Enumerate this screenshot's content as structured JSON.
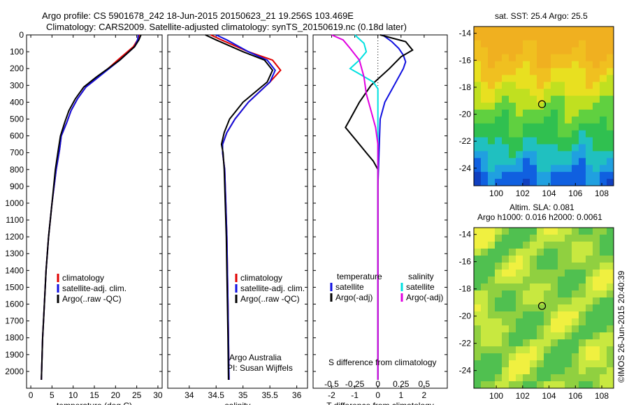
{
  "header": {
    "line1": "Argo profile: CS 5901678_242 18-Jun-2015 20150623_21 19.256S 103.469E",
    "line2": "Climatology: CARS2009. Satellite-adjusted climatology: synTS_20150619.nc (0.18d later)"
  },
  "colors": {
    "climatology": "#e00000",
    "satellite": "#1010e0",
    "argo": "#000000",
    "sat_salinity": "#00e0e0",
    "argo_salinity": "#e000e0"
  },
  "chart_data": [
    {
      "type": "line",
      "name": "temperature-profile",
      "xlabel": "temperature (deg C)",
      "xlim": [
        -1,
        31
      ],
      "ylim": [
        2100,
        0
      ],
      "xticks": [
        "0",
        "5",
        "10",
        "15",
        "20",
        "25",
        "30"
      ],
      "yticks": [
        "0",
        "100",
        "200",
        "300",
        "400",
        "500",
        "600",
        "700",
        "800",
        "900",
        "1000",
        "1100",
        "1200",
        "1300",
        "1400",
        "1500",
        "1600",
        "1700",
        "1800",
        "1900",
        "2000"
      ],
      "legend": [
        "climatology",
        "satellite-adj. clim.",
        "Argo(..raw -QC)"
      ],
      "series": [
        {
          "name": "climatology",
          "color": "#e00000",
          "x": [
            25.6,
            25.2,
            24.2,
            20.5,
            16,
            13,
            11,
            9.5,
            8.5,
            7.2,
            6.8,
            6,
            5,
            4.2,
            3.6,
            3.2,
            2.8,
            2.5
          ],
          "y": [
            0,
            30,
            70,
            150,
            250,
            310,
            380,
            450,
            520,
            600,
            680,
            800,
            1000,
            1200,
            1400,
            1600,
            1800,
            2050
          ]
        },
        {
          "name": "satellite-adj. clim.",
          "color": "#1010e0",
          "x": [
            25.4,
            25.2,
            24.5,
            21,
            16,
            13,
            11,
            9.5,
            8.5,
            7.2,
            6.8,
            6,
            5,
            4.2,
            3.6,
            3.2,
            2.8,
            2.5
          ],
          "y": [
            0,
            30,
            70,
            150,
            250,
            310,
            380,
            450,
            520,
            600,
            680,
            800,
            1000,
            1200,
            1400,
            1600,
            1800,
            2050
          ]
        },
        {
          "name": "Argo(..raw -QC)",
          "color": "#000000",
          "x": [
            26,
            25.5,
            24.5,
            21,
            15.5,
            12.5,
            10.5,
            9,
            8,
            7,
            6.5,
            5.8,
            5,
            4.2,
            3.6,
            3.2,
            2.8,
            2.5
          ],
          "y": [
            0,
            30,
            70,
            150,
            250,
            310,
            380,
            450,
            520,
            600,
            680,
            800,
            1000,
            1200,
            1400,
            1600,
            1800,
            2050
          ]
        }
      ]
    },
    {
      "type": "line",
      "name": "salinity-profile",
      "xlabel": "salinity",
      "xlim": [
        33.6,
        36.2
      ],
      "ylim": [
        2100,
        0
      ],
      "xticks": [
        "34",
        "34.5",
        "35",
        "35.5",
        "36"
      ],
      "legend": [
        "climatology",
        "satellite-adj. clim.",
        "Argo(..raw -QC)"
      ],
      "annotation": [
        "Argo Australia",
        "PI: Susan Wijffels"
      ],
      "series": [
        {
          "name": "climatology",
          "color": "#e00000",
          "x": [
            34.4,
            34.6,
            35.1,
            35.55,
            35.7,
            35.5,
            35.1,
            34.85,
            34.7,
            34.62,
            34.62,
            34.66,
            34.68,
            34.7,
            34.71,
            34.72,
            34.73,
            34.74
          ],
          "y": [
            0,
            30,
            100,
            150,
            210,
            280,
            400,
            500,
            580,
            650,
            700,
            800,
            1000,
            1200,
            1400,
            1600,
            1800,
            2050
          ]
        },
        {
          "name": "satellite-adj. clim.",
          "color": "#1010e0",
          "x": [
            34.5,
            34.7,
            35.1,
            35.45,
            35.6,
            35.5,
            35.1,
            34.85,
            34.7,
            34.62,
            34.62,
            34.66,
            34.68,
            34.7,
            34.71,
            34.72,
            34.73,
            34.74
          ],
          "y": [
            0,
            30,
            100,
            150,
            210,
            280,
            400,
            500,
            580,
            650,
            700,
            800,
            1000,
            1200,
            1400,
            1600,
            1800,
            2050
          ]
        },
        {
          "name": "Argo(..raw -QC)",
          "color": "#000000",
          "x": [
            34.3,
            34.5,
            35.0,
            35.4,
            35.55,
            35.45,
            35.0,
            34.75,
            34.65,
            34.6,
            34.63,
            34.65,
            34.67,
            34.69,
            34.7,
            34.71,
            34.72,
            34.73
          ],
          "y": [
            0,
            30,
            100,
            150,
            210,
            280,
            400,
            500,
            580,
            650,
            700,
            800,
            1000,
            1200,
            1400,
            1600,
            1800,
            2050
          ]
        }
      ]
    },
    {
      "type": "line",
      "name": "difference-profile",
      "xlabel": "T difference from climatology",
      "xlabel_top": "S difference from climatology",
      "xlim": [
        -2.8,
        3.0
      ],
      "ylim": [
        2100,
        0
      ],
      "xticks": [
        "-2",
        "-1",
        "0",
        "1",
        "2"
      ],
      "s_ticks": [
        "-0.5",
        "-0.25",
        "0",
        "0.25",
        "0.5"
      ],
      "legend_t_title": "temperature",
      "legend_s_title": "salinity",
      "legend_t": [
        "satellite",
        "Argo(-adj)"
      ],
      "legend_s": [
        "satellite",
        "Argo(-adj)"
      ],
      "series": [
        {
          "name": "T satellite",
          "color": "#1010e0",
          "x": [
            0.2,
            0.6,
            0.9,
            1.1,
            1.2,
            1.1,
            0.7,
            0.3,
            0.1,
            0.05,
            0.0,
            0.0,
            0.0
          ],
          "y": [
            0,
            40,
            80,
            120,
            160,
            200,
            300,
            400,
            500,
            700,
            900,
            1200,
            2050
          ]
        },
        {
          "name": "T Argo(-adj)",
          "color": "#000000",
          "x": [
            0.1,
            1.2,
            1.5,
            1.0,
            0.5,
            -0.3,
            -0.8,
            -1.2,
            -1.4,
            -1.1,
            -0.8,
            -0.5,
            -0.2,
            0.0,
            0.0
          ],
          "y": [
            0,
            40,
            90,
            130,
            200,
            300,
            400,
            500,
            550,
            600,
            650,
            700,
            750,
            800,
            2050
          ]
        },
        {
          "name": "S satellite",
          "color": "#00e0e0",
          "x": [
            -1.0,
            -0.6,
            -0.5,
            -0.8,
            -1.2,
            -0.7,
            -0.2,
            0.0,
            0.0,
            0.0,
            0.0
          ],
          "y": [
            0,
            50,
            100,
            150,
            200,
            240,
            280,
            320,
            500,
            1000,
            2050
          ]
        },
        {
          "name": "S Argo(-adj)",
          "color": "#e000e0",
          "x": [
            -2.0,
            -1.5,
            -1.2,
            -0.8,
            -0.6,
            -0.5,
            -0.3,
            -0.1,
            0.0,
            0.0,
            0.0
          ],
          "y": [
            0,
            30,
            80,
            150,
            250,
            350,
            450,
            550,
            650,
            800,
            2050
          ]
        }
      ]
    }
  ],
  "maps": [
    {
      "name": "sst-map",
      "title": "sat. SST: 25.4 Argo: 25.5",
      "xticks": [
        "100",
        "102",
        "104",
        "106",
        "108"
      ],
      "yticks": [
        "-14",
        "-16",
        "-18",
        "-20",
        "-22",
        "-24"
      ],
      "xlim": [
        98.3,
        108.9
      ],
      "ylim": [
        -25.3,
        -13.5
      ],
      "argo_lon": 103.469,
      "argo_lat": -19.256
    },
    {
      "name": "sla-map",
      "title_line1": "Altim. SLA: 0.081",
      "title_line2": "Argo h1000: 0.016 h2000: 0.0061",
      "xticks": [
        "100",
        "102",
        "104",
        "106",
        "108"
      ],
      "yticks": [
        "-14",
        "-16",
        "-18",
        "-20",
        "-22",
        "-24"
      ],
      "xlim": [
        98.3,
        108.9
      ],
      "ylim": [
        -25.3,
        -13.5
      ],
      "argo_lon": 103.469,
      "argo_lat": -19.256
    }
  ],
  "credit": "©IMOS 26-Jun-2015 20:40:39"
}
